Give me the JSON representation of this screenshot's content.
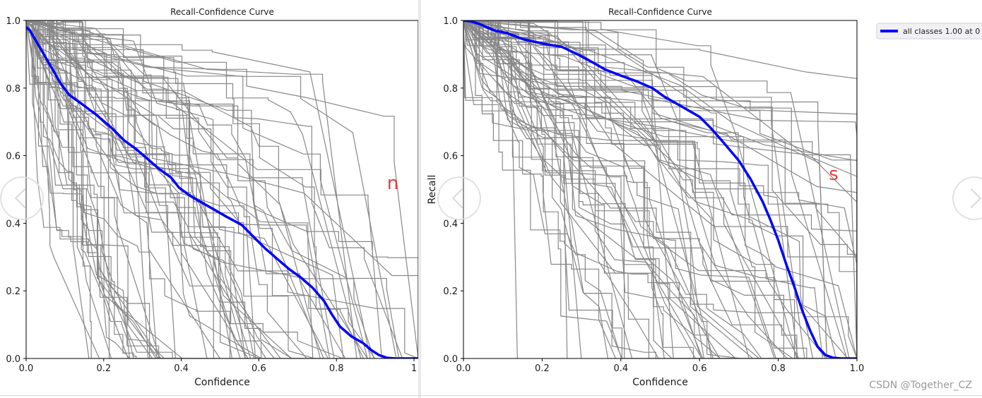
{
  "watermark": "CSDN @Together_CZ",
  "chart_data": [
    {
      "type": "line",
      "title": "Recall-Confidence Curve",
      "xlabel": "Confidence",
      "ylabel": "",
      "xlim": [
        0,
        1
      ],
      "ylim": [
        0,
        1
      ],
      "xticks": [
        "0.0",
        "0.2",
        "0.4",
        "0.6",
        "0.8",
        "1"
      ],
      "yticks": [
        "0.0",
        "0.2",
        "0.4",
        "0.6",
        "0.8",
        "1.0"
      ],
      "grid": false,
      "annotation": "n",
      "annotation_color": "#e84040",
      "series": [
        {
          "name": "",
          "color": "#0000ff",
          "x": [
            0.0,
            0.01,
            0.03,
            0.05,
            0.07,
            0.09,
            0.11,
            0.14,
            0.18,
            0.22,
            0.25,
            0.28,
            0.31,
            0.34,
            0.37,
            0.39,
            0.42,
            0.45,
            0.48,
            0.51,
            0.55,
            0.58,
            0.61,
            0.64,
            0.67,
            0.7,
            0.73,
            0.76,
            0.78,
            0.8,
            0.83,
            0.86,
            0.88,
            0.9,
            0.92,
            0.94,
            0.96,
            0.98,
            1.0
          ],
          "y": [
            0.98,
            0.97,
            0.93,
            0.89,
            0.85,
            0.81,
            0.78,
            0.755,
            0.72,
            0.68,
            0.645,
            0.62,
            0.59,
            0.56,
            0.535,
            0.505,
            0.48,
            0.46,
            0.44,
            0.42,
            0.395,
            0.36,
            0.325,
            0.295,
            0.265,
            0.24,
            0.21,
            0.17,
            0.13,
            0.095,
            0.065,
            0.045,
            0.025,
            0.01,
            0.002,
            0.0,
            0.0,
            0.0,
            0.0
          ]
        }
      ]
    },
    {
      "type": "line",
      "title": "Recall-Confidence Curve",
      "xlabel": "Confidence",
      "ylabel": "Recall",
      "xlim": [
        0,
        1
      ],
      "ylim": [
        0,
        1
      ],
      "xticks": [
        "0.0",
        "0.2",
        "0.4",
        "0.6",
        "0.8",
        "1.0"
      ],
      "yticks": [
        "0.0",
        "0.2",
        "0.4",
        "0.6",
        "0.8",
        "1.0"
      ],
      "grid": false,
      "annotation": "s",
      "annotation_color": "#e84040",
      "legend": {
        "position": "outside-top-right",
        "entries": [
          "all classes 1.00 at 0"
        ]
      },
      "series": [
        {
          "name": "all classes 1.00 at 0",
          "color": "#0000ff",
          "x": [
            0.0,
            0.02,
            0.04,
            0.06,
            0.08,
            0.11,
            0.15,
            0.2,
            0.25,
            0.29,
            0.33,
            0.36,
            0.4,
            0.44,
            0.48,
            0.51,
            0.54,
            0.57,
            0.6,
            0.63,
            0.66,
            0.7,
            0.73,
            0.76,
            0.78,
            0.8,
            0.82,
            0.84,
            0.86,
            0.88,
            0.9,
            0.92,
            0.94,
            0.96,
            0.98,
            1.0
          ],
          "y": [
            1.0,
            0.997,
            0.99,
            0.98,
            0.97,
            0.963,
            0.945,
            0.932,
            0.922,
            0.9,
            0.875,
            0.855,
            0.837,
            0.82,
            0.8,
            0.775,
            0.755,
            0.735,
            0.715,
            0.68,
            0.64,
            0.585,
            0.53,
            0.465,
            0.41,
            0.35,
            0.28,
            0.215,
            0.145,
            0.085,
            0.035,
            0.01,
            0.002,
            0.0,
            0.0,
            0.0
          ]
        }
      ]
    }
  ]
}
